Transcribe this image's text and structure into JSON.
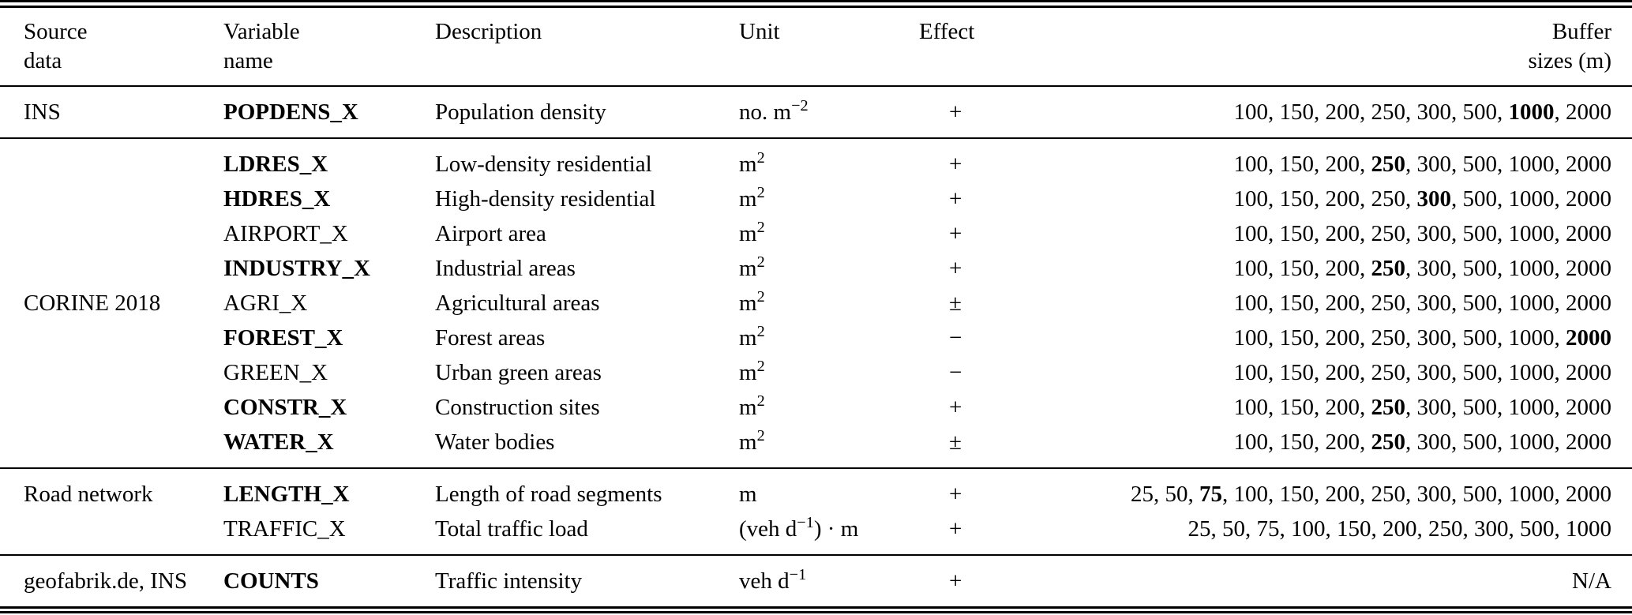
{
  "table": {
    "columns": [
      {
        "id": "source",
        "line1": "Source",
        "line2": "data"
      },
      {
        "id": "variable",
        "line1": "Variable",
        "line2": "name"
      },
      {
        "id": "description",
        "line1": "Description",
        "line2": ""
      },
      {
        "id": "unit",
        "line1": "Unit",
        "line2": ""
      },
      {
        "id": "effect",
        "line1": "Effect",
        "line2": ""
      },
      {
        "id": "buffer",
        "line1": "Buffer",
        "line2": "sizes (m)"
      }
    ],
    "groups": [
      {
        "source": "INS",
        "label_align": "middle",
        "rows": [
          {
            "variable": "POPDENS_X",
            "bold": true,
            "description": "Population density",
            "unit": [
              {
                "t": "no. m"
              },
              {
                "sup": "−2"
              }
            ],
            "effect": "+",
            "buffers": [
              {
                "t": "100"
              },
              {
                "t": "150"
              },
              {
                "t": "200"
              },
              {
                "t": "250"
              },
              {
                "t": "300"
              },
              {
                "t": "500"
              },
              {
                "t": "1000",
                "b": true
              },
              {
                "t": "2000"
              }
            ]
          }
        ]
      },
      {
        "source": "CORINE 2018",
        "label_align": "middle",
        "rows": [
          {
            "variable": "LDRES_X",
            "bold": true,
            "description": "Low-density residential",
            "unit": [
              {
                "t": "m"
              },
              {
                "sup": "2"
              }
            ],
            "effect": "+",
            "buffers": [
              {
                "t": "100"
              },
              {
                "t": "150"
              },
              {
                "t": "200"
              },
              {
                "t": "250",
                "b": true
              },
              {
                "t": "300"
              },
              {
                "t": "500"
              },
              {
                "t": "1000"
              },
              {
                "t": "2000"
              }
            ]
          },
          {
            "variable": "HDRES_X",
            "bold": true,
            "description": "High-density residential",
            "unit": [
              {
                "t": "m"
              },
              {
                "sup": "2"
              }
            ],
            "effect": "+",
            "buffers": [
              {
                "t": "100"
              },
              {
                "t": "150"
              },
              {
                "t": "200"
              },
              {
                "t": "250"
              },
              {
                "t": "300",
                "b": true
              },
              {
                "t": "500"
              },
              {
                "t": "1000"
              },
              {
                "t": "2000"
              }
            ]
          },
          {
            "variable": "AIRPORT_X",
            "bold": false,
            "description": "Airport area",
            "unit": [
              {
                "t": "m"
              },
              {
                "sup": "2"
              }
            ],
            "effect": "+",
            "buffers": [
              {
                "t": "100"
              },
              {
                "t": "150"
              },
              {
                "t": "200"
              },
              {
                "t": "250"
              },
              {
                "t": "300"
              },
              {
                "t": "500"
              },
              {
                "t": "1000"
              },
              {
                "t": "2000"
              }
            ]
          },
          {
            "variable": "INDUSTRY_X",
            "bold": true,
            "description": "Industrial areas",
            "unit": [
              {
                "t": "m"
              },
              {
                "sup": "2"
              }
            ],
            "effect": "+",
            "buffers": [
              {
                "t": "100"
              },
              {
                "t": "150"
              },
              {
                "t": "200"
              },
              {
                "t": "250",
                "b": true
              },
              {
                "t": "300"
              },
              {
                "t": "500"
              },
              {
                "t": "1000"
              },
              {
                "t": "2000"
              }
            ]
          },
          {
            "variable": "AGRI_X",
            "bold": false,
            "description": "Agricultural areas",
            "unit": [
              {
                "t": "m"
              },
              {
                "sup": "2"
              }
            ],
            "effect": "±",
            "buffers": [
              {
                "t": "100"
              },
              {
                "t": "150"
              },
              {
                "t": "200"
              },
              {
                "t": "250"
              },
              {
                "t": "300"
              },
              {
                "t": "500"
              },
              {
                "t": "1000"
              },
              {
                "t": "2000"
              }
            ]
          },
          {
            "variable": "FOREST_X",
            "bold": true,
            "description": "Forest areas",
            "unit": [
              {
                "t": "m"
              },
              {
                "sup": "2"
              }
            ],
            "effect": "−",
            "buffers": [
              {
                "t": "100"
              },
              {
                "t": "150"
              },
              {
                "t": "200"
              },
              {
                "t": "250"
              },
              {
                "t": "300"
              },
              {
                "t": "500"
              },
              {
                "t": "1000"
              },
              {
                "t": "2000",
                "b": true
              }
            ]
          },
          {
            "variable": "GREEN_X",
            "bold": false,
            "description": "Urban green areas",
            "unit": [
              {
                "t": "m"
              },
              {
                "sup": "2"
              }
            ],
            "effect": "−",
            "buffers": [
              {
                "t": "100"
              },
              {
                "t": "150"
              },
              {
                "t": "200"
              },
              {
                "t": "250"
              },
              {
                "t": "300"
              },
              {
                "t": "500"
              },
              {
                "t": "1000"
              },
              {
                "t": "2000"
              }
            ]
          },
          {
            "variable": "CONSTR_X",
            "bold": true,
            "description": "Construction sites",
            "unit": [
              {
                "t": "m"
              },
              {
                "sup": "2"
              }
            ],
            "effect": "+",
            "buffers": [
              {
                "t": "100"
              },
              {
                "t": "150"
              },
              {
                "t": "200"
              },
              {
                "t": "250",
                "b": true
              },
              {
                "t": "300"
              },
              {
                "t": "500"
              },
              {
                "t": "1000"
              },
              {
                "t": "2000"
              }
            ]
          },
          {
            "variable": "WATER_X",
            "bold": true,
            "description": "Water bodies",
            "unit": [
              {
                "t": "m"
              },
              {
                "sup": "2"
              }
            ],
            "effect": "±",
            "buffers": [
              {
                "t": "100"
              },
              {
                "t": "150"
              },
              {
                "t": "200"
              },
              {
                "t": "250",
                "b": true
              },
              {
                "t": "300"
              },
              {
                "t": "500"
              },
              {
                "t": "1000"
              },
              {
                "t": "2000"
              }
            ]
          }
        ]
      },
      {
        "source": "Road network",
        "label_align": "top",
        "rows": [
          {
            "variable": "LENGTH_X",
            "bold": true,
            "description": "Length of road segments",
            "unit": [
              {
                "t": "m"
              }
            ],
            "effect": "+",
            "buffers": [
              {
                "t": "25"
              },
              {
                "t": "50"
              },
              {
                "t": "75",
                "b": true
              },
              {
                "t": "100"
              },
              {
                "t": "150"
              },
              {
                "t": "200"
              },
              {
                "t": "250"
              },
              {
                "t": "300"
              },
              {
                "t": "500"
              },
              {
                "t": "1000"
              },
              {
                "t": "2000"
              }
            ]
          },
          {
            "variable": "TRAFFIC_X",
            "bold": false,
            "description": "Total traffic load",
            "unit": [
              {
                "t": "(veh d"
              },
              {
                "sup": "−1"
              },
              {
                "t": ") · m"
              }
            ],
            "effect": "+",
            "buffers": [
              {
                "t": "25"
              },
              {
                "t": "50"
              },
              {
                "t": "75"
              },
              {
                "t": "100"
              },
              {
                "t": "150"
              },
              {
                "t": "200"
              },
              {
                "t": "250"
              },
              {
                "t": "300"
              },
              {
                "t": "500"
              },
              {
                "t": "1000"
              }
            ]
          }
        ]
      },
      {
        "source": "geofabrik.de, INS",
        "label_align": "top",
        "rows": [
          {
            "variable": "COUNTS",
            "bold": true,
            "description": "Traffic intensity",
            "unit": [
              {
                "t": "veh d"
              },
              {
                "sup": "−1"
              }
            ],
            "effect": "+",
            "buffers": [
              {
                "t": "N/A"
              }
            ]
          }
        ]
      }
    ]
  }
}
